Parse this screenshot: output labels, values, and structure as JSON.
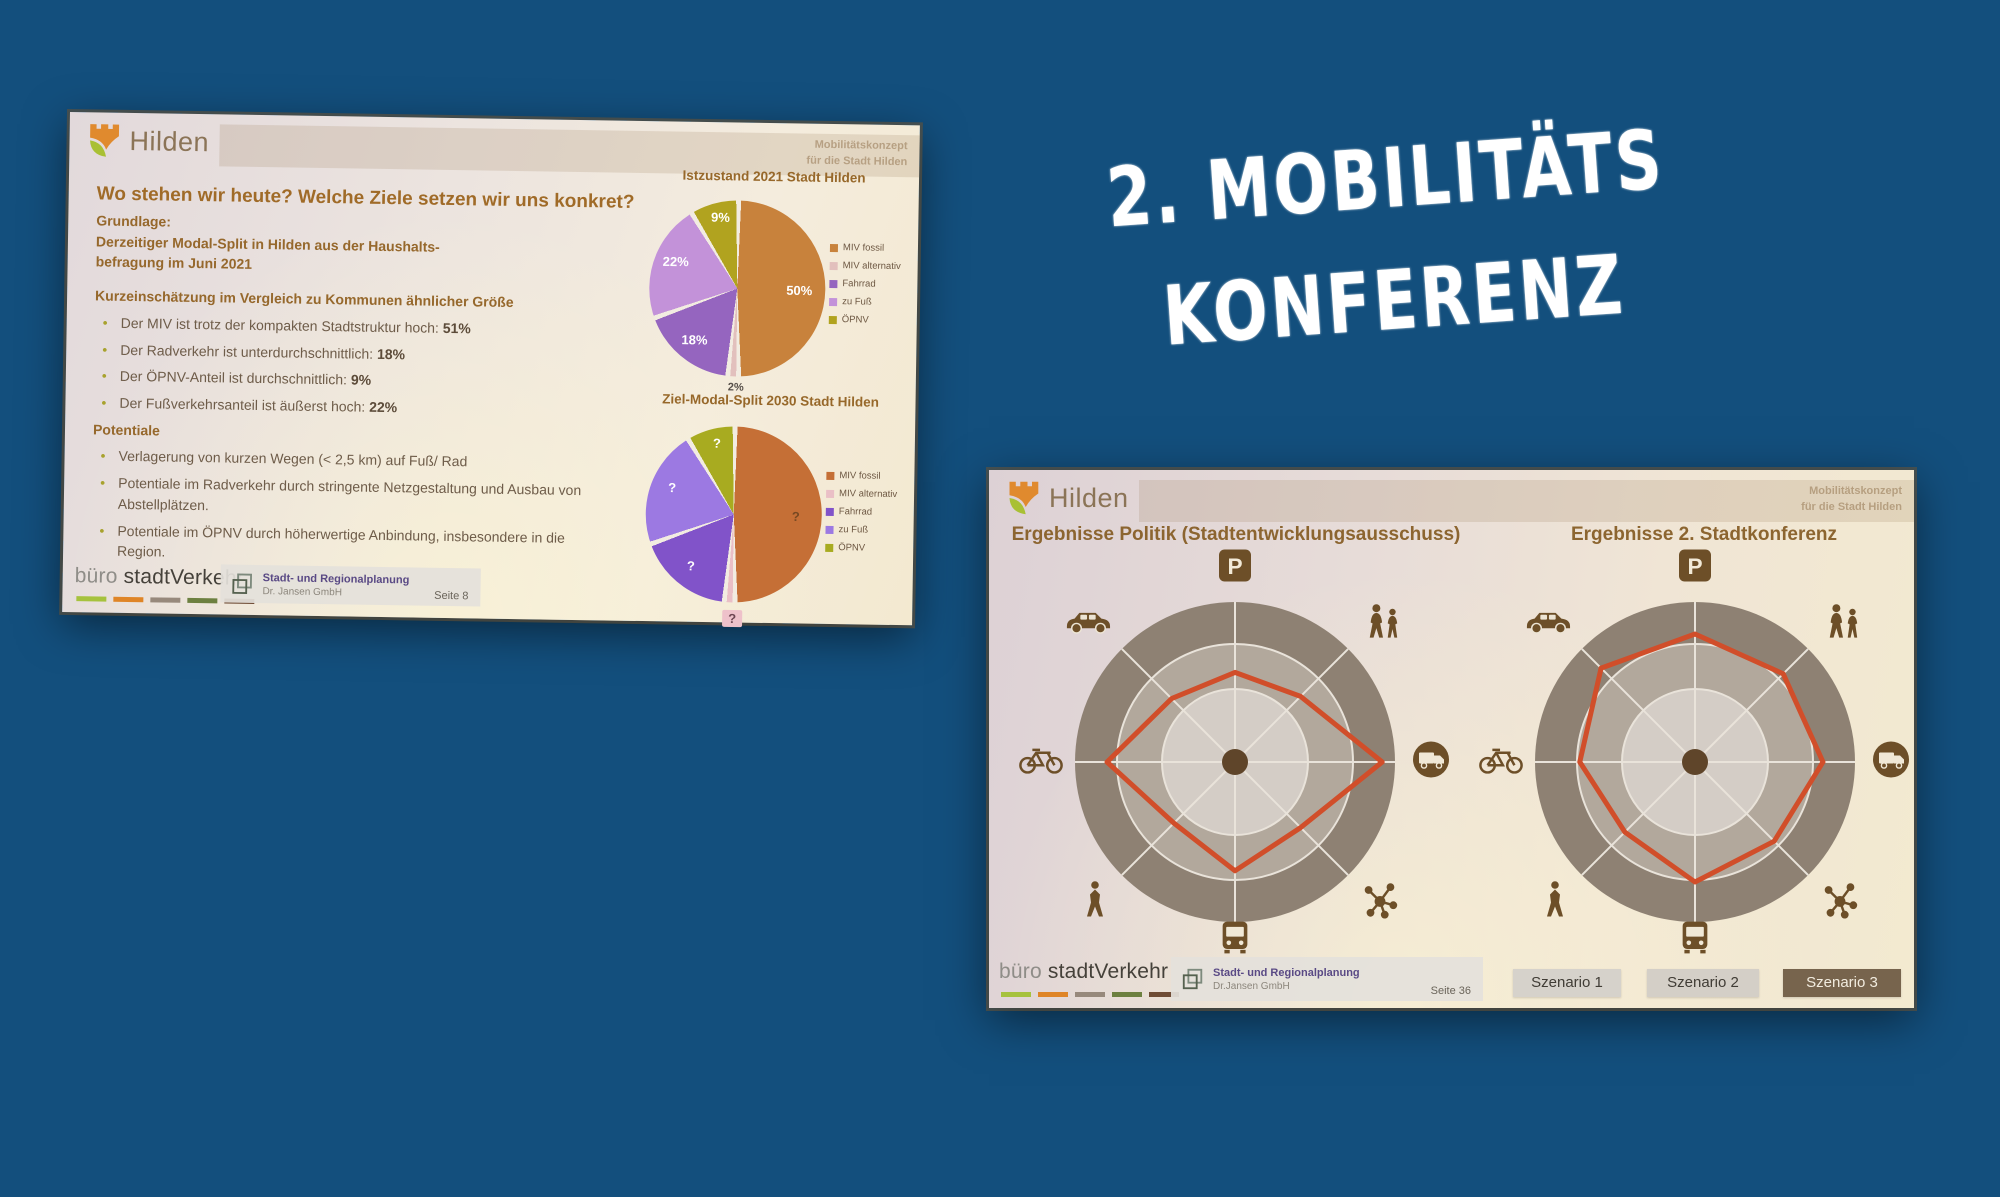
{
  "page": {
    "background": "#134f7d"
  },
  "overlay_title": {
    "line1": "2. MOBILITÄTS",
    "line2": "KONFERENZ",
    "color": "#ffffff"
  },
  "slide_left": {
    "brand": "Hilden",
    "watermark_line1": "Mobilitätskonzept",
    "watermark_line2": "für die Stadt Hilden",
    "title": "Wo stehen wir heute? Welche Ziele setzen wir uns konkret?",
    "grundlage": {
      "heading": "Grundlage:",
      "line1": "Derzeitiger Modal-Split in Hilden aus der Haushalts-",
      "line2": "befragung im Juni 2021"
    },
    "kurzeinschaetzung": {
      "heading": "Kurzeinschätzung im Vergleich zu Kommunen ähnlicher Größe",
      "bullets": [
        {
          "text": "Der MIV ist trotz der kompakten Stadtstruktur hoch: ",
          "value": "51%"
        },
        {
          "text": "Der Radverkehr ist unterdurchschnittlich: ",
          "value": "18%"
        },
        {
          "text": "Der ÖPNV-Anteil ist durchschnittlich: ",
          "value": "9%"
        },
        {
          "text": "Der Fußverkehrsanteil ist äußerst hoch: ",
          "value": "22%"
        }
      ]
    },
    "potentiale": {
      "heading": "Potentiale",
      "bullets": [
        {
          "text": "Verlagerung von kurzen Wegen (< 2,5 km) auf Fuß/ Rad"
        },
        {
          "text": "Potentiale im Radverkehr durch stringente Netzgestaltung und Ausbau von Abstellplätzen."
        },
        {
          "text": "Potentiale im ÖPNV durch höherwertige Anbindung, insbesondere in die Region."
        }
      ]
    },
    "footer": {
      "brand_light": "büro",
      "brand_dark": " stadtVerkehr",
      "dash_colors": [
        "#a6c23d",
        "#df8527",
        "#97897c",
        "#6d8040",
        "#6f4c35"
      ],
      "org": "Stadt- und Regionalplanung",
      "company": "Dr. Jansen GmbH",
      "page": "Seite 8"
    }
  },
  "slide_right": {
    "brand": "Hilden",
    "watermark_line1": "Mobilitätskonzept",
    "watermark_line2": "für die Stadt Hilden",
    "heading_left": "Ergebnisse Politik (Stadtentwicklungsausschuss)",
    "heading_right": "Ergebnisse 2. Stadtkonferenz",
    "buttons": [
      {
        "label": "Szenario 1",
        "selected": false
      },
      {
        "label": "Szenario 2",
        "selected": false
      },
      {
        "label": "Szenario 3",
        "selected": true
      }
    ],
    "footer": {
      "brand_light": "büro",
      "brand_dark": " stadtVerkehr",
      "dash_colors": [
        "#a6c23d",
        "#df8527",
        "#97897c",
        "#6d8040",
        "#6f4c35"
      ],
      "org": "Stadt- und Regionalplanung",
      "company": "Dr.Jansen GmbH",
      "page": "Seite 36"
    }
  },
  "chart_data": [
    {
      "type": "pie",
      "title": "Istzustand 2021 Stadt Hilden",
      "start": "top",
      "direction": "clockwise",
      "legend_position": "right",
      "slices": [
        {
          "label": "MIV fossil",
          "value": 50,
          "display": "50%",
          "color": "#c8823c"
        },
        {
          "label": "MIV alternativ",
          "value": 2,
          "display": "2%",
          "color": "#e2c0bd"
        },
        {
          "label": "Fahrrad",
          "value": 18,
          "display": "18%",
          "color": "#9565bf"
        },
        {
          "label": "zu Fuß",
          "value": 22,
          "display": "22%",
          "color": "#c392d9"
        },
        {
          "label": "ÖPNV",
          "value": 9,
          "display": "9%",
          "color": "#b1a31f"
        }
      ]
    },
    {
      "type": "pie",
      "title": "Ziel-Modal-Split 2030 Stadt Hilden",
      "start": "top",
      "direction": "clockwise",
      "legend_position": "right",
      "note": "target shares unknown, all slices labelled with question marks",
      "slices": [
        {
          "label": "MIV fossil",
          "value": 50,
          "display": "?",
          "color": "#c56f36"
        },
        {
          "label": "MIV alternativ",
          "value": 2,
          "display": "?",
          "color": "#eabfc6"
        },
        {
          "label": "Fahrrad",
          "value": 18,
          "display": "?",
          "color": "#8153c9"
        },
        {
          "label": "zu Fuß",
          "value": 22,
          "display": "?",
          "color": "#9c79e2"
        },
        {
          "label": "ÖPNV",
          "value": 9,
          "display": "?",
          "color": "#a8ab20"
        }
      ]
    },
    {
      "type": "radar",
      "title": "Ergebnisse Politik (Stadtentwicklungsausschuss)",
      "axes_icons_clockwise_from_top": [
        "parking",
        "pedestrians-pair",
        "delivery-truck",
        "network-hub",
        "bus",
        "walking-person",
        "bicycle",
        "car"
      ],
      "values": [
        0.56,
        0.58,
        0.92,
        0.58,
        0.68,
        0.54,
        0.8,
        0.56
      ],
      "unit": "fraction of outer radius (estimated from image)",
      "line_color": "#d14e2a",
      "rings": 3
    },
    {
      "type": "radar",
      "title": "Ergebnisse 2. Stadtkonferenz",
      "axes_icons_clockwise_from_top": [
        "parking",
        "pedestrians-pair",
        "delivery-truck",
        "network-hub",
        "bus",
        "walking-person",
        "bicycle",
        "car"
      ],
      "values": [
        0.8,
        0.78,
        0.8,
        0.7,
        0.75,
        0.62,
        0.72,
        0.83
      ],
      "unit": "fraction of outer radius (estimated from image)",
      "line_color": "#d14e2a",
      "rings": 3
    }
  ]
}
